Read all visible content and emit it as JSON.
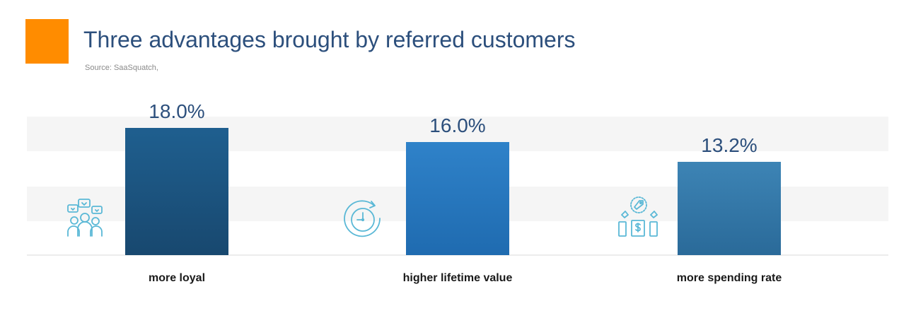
{
  "header": {
    "title": "Three advantages brought by referred customers",
    "source": "Source: SaaSquatch,",
    "accent_color": "#ff8c00"
  },
  "chart_data": {
    "type": "bar",
    "title": "Three advantages brought by referred customers",
    "categories": [
      "more loyal",
      "higher lifetime value",
      "more spending rate"
    ],
    "values": [
      18.0,
      16.0,
      13.2
    ],
    "value_labels": [
      "18.0%",
      "16.0%",
      "13.2%"
    ],
    "bar_colors": [
      [
        "#1f5f8f",
        "#18486f"
      ],
      [
        "#2f82c9",
        "#1f6bb0"
      ],
      [
        "#3d84b5",
        "#2a6a99"
      ]
    ],
    "icons": [
      "people-hearts-icon",
      "clock-cycle-icon",
      "price-tag-dollar-icon"
    ],
    "ylim": [
      0,
      20
    ],
    "grid": "horizontal bands",
    "legend": "none"
  }
}
